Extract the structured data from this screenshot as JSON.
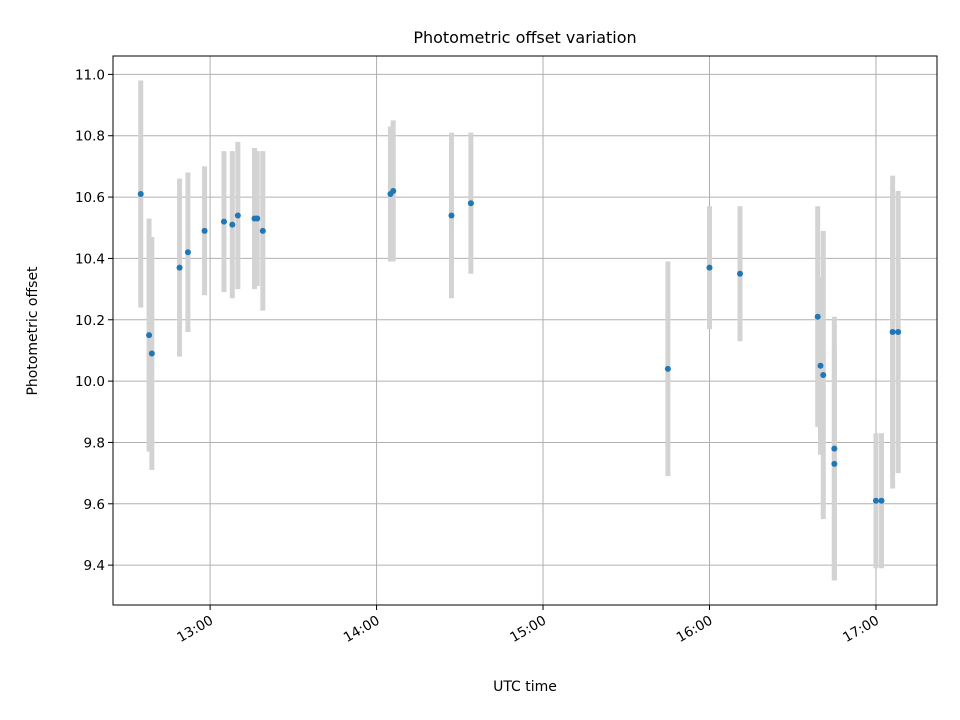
{
  "chart_data": {
    "type": "scatter",
    "title": "Photometric offset variation",
    "xlabel": "UTC time",
    "ylabel": "Photometric offset",
    "x_unit": "UTC time (HH:MM)",
    "xlim": [
      "12:25",
      "17:22"
    ],
    "ylim": [
      9.27,
      11.06
    ],
    "x_ticks": [
      "13:00",
      "14:00",
      "15:00",
      "16:00",
      "17:00"
    ],
    "y_ticks": [
      "9.4",
      "9.6",
      "9.8",
      "10.0",
      "10.2",
      "10.4",
      "10.6",
      "10.8",
      "11.0"
    ],
    "grid": true,
    "error_bar_color": "#d3d3d3",
    "marker_color": "#1f77b4",
    "points": [
      {
        "time": "12:35",
        "offset": 10.61,
        "err": 0.37
      },
      {
        "time": "12:38",
        "offset": 10.15,
        "err": 0.38
      },
      {
        "time": "12:39",
        "offset": 10.09,
        "err": 0.38
      },
      {
        "time": "12:49",
        "offset": 10.37,
        "err": 0.29
      },
      {
        "time": "12:52",
        "offset": 10.42,
        "err": 0.26
      },
      {
        "time": "12:58",
        "offset": 10.49,
        "err": 0.21
      },
      {
        "time": "13:05",
        "offset": 10.52,
        "err": 0.23
      },
      {
        "time": "13:08",
        "offset": 10.51,
        "err": 0.24
      },
      {
        "time": "13:10",
        "offset": 10.54,
        "err": 0.24
      },
      {
        "time": "13:16",
        "offset": 10.53,
        "err": 0.23
      },
      {
        "time": "13:17",
        "offset": 10.53,
        "err": 0.22
      },
      {
        "time": "13:19",
        "offset": 10.49,
        "err": 0.26
      },
      {
        "time": "14:05",
        "offset": 10.61,
        "err": 0.22
      },
      {
        "time": "14:06",
        "offset": 10.62,
        "err": 0.23
      },
      {
        "time": "14:27",
        "offset": 10.54,
        "err": 0.27
      },
      {
        "time": "14:34",
        "offset": 10.58,
        "err": 0.23
      },
      {
        "time": "15:45",
        "offset": 10.04,
        "err": 0.35
      },
      {
        "time": "16:00",
        "offset": 10.37,
        "err": 0.2
      },
      {
        "time": "16:11",
        "offset": 10.35,
        "err": 0.22
      },
      {
        "time": "16:39",
        "offset": 10.21,
        "err": 0.36
      },
      {
        "time": "16:40",
        "offset": 10.05,
        "err": 0.29
      },
      {
        "time": "16:41",
        "offset": 10.02,
        "err": 0.47
      },
      {
        "time": "16:45",
        "offset": 9.78,
        "err": 0.43
      },
      {
        "time": "16:45",
        "offset": 9.73,
        "err": 0.38
      },
      {
        "time": "17:00",
        "offset": 9.61,
        "err": 0.22
      },
      {
        "time": "17:02",
        "offset": 9.61,
        "err": 0.22
      },
      {
        "time": "17:06",
        "offset": 10.16,
        "err": 0.51
      },
      {
        "time": "17:08",
        "offset": 10.16,
        "err": 0.46
      }
    ]
  }
}
